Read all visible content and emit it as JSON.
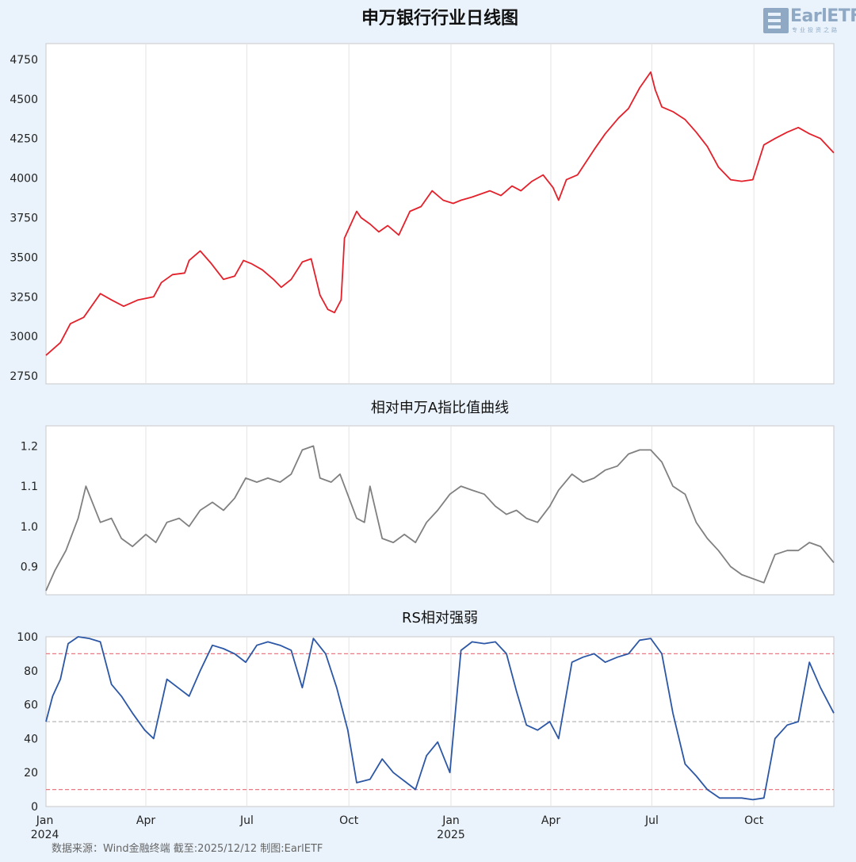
{
  "watermark": {
    "brand": "EarlETF",
    "sub": "专业投资之路"
  },
  "footer": {
    "source": "数据来源：Wind金融终端 截至:2025/12/12 制图:EarlETF"
  },
  "colors": {
    "background": "#eaf3fb",
    "plot_bg": "#ffffff",
    "price": "#e4202a",
    "ratio": "#808080",
    "rs": "#2c57a6",
    "upper_line": "#e57b83",
    "mid_line": "#b9b9b9",
    "lower_line": "#e57b83"
  },
  "x_axis": {
    "start": "2024-01-02",
    "end": "2025-12-12",
    "ticks": [
      {
        "label": "Jan",
        "sublabel": "2024",
        "date": "2024-01-01"
      },
      {
        "label": "Apr",
        "sublabel": "",
        "date": "2024-04-01"
      },
      {
        "label": "Jul",
        "sublabel": "",
        "date": "2024-07-01"
      },
      {
        "label": "Oct",
        "sublabel": "",
        "date": "2024-10-01"
      },
      {
        "label": "Jan",
        "sublabel": "2025",
        "date": "2025-01-01"
      },
      {
        "label": "Apr",
        "sublabel": "",
        "date": "2025-04-01"
      },
      {
        "label": "Jul",
        "sublabel": "",
        "date": "2025-07-01"
      },
      {
        "label": "Oct",
        "sublabel": "",
        "date": "2025-10-01"
      }
    ]
  },
  "chart_data": [
    {
      "type": "line",
      "title": "申万银行行业日线图",
      "ylim": [
        2700,
        4850
      ],
      "yticks": [
        2750,
        3000,
        3250,
        3500,
        3750,
        4000,
        4250,
        4500,
        4750
      ],
      "series": [
        {
          "x": [
            "2024-01-02",
            "2024-01-15",
            "2024-01-24",
            "2024-02-05",
            "2024-02-20",
            "2024-03-01",
            "2024-03-12",
            "2024-03-25",
            "2024-04-08",
            "2024-04-15",
            "2024-04-25",
            "2024-05-06",
            "2024-05-10",
            "2024-05-20",
            "2024-05-30",
            "2024-06-10",
            "2024-06-20",
            "2024-06-28",
            "2024-07-05",
            "2024-07-15",
            "2024-07-25",
            "2024-08-01",
            "2024-08-10",
            "2024-08-20",
            "2024-08-28",
            "2024-09-05",
            "2024-09-12",
            "2024-09-18",
            "2024-09-24",
            "2024-09-27",
            "2024-10-08",
            "2024-10-12",
            "2024-10-20",
            "2024-10-28",
            "2024-11-05",
            "2024-11-15",
            "2024-11-25",
            "2024-12-05",
            "2024-12-15",
            "2024-12-25",
            "2025-01-03",
            "2025-01-10",
            "2025-01-20",
            "2025-02-05",
            "2025-02-15",
            "2025-02-25",
            "2025-03-05",
            "2025-03-15",
            "2025-03-25",
            "2025-04-03",
            "2025-04-08",
            "2025-04-15",
            "2025-04-25",
            "2025-05-10",
            "2025-05-20",
            "2025-06-01",
            "2025-06-10",
            "2025-06-20",
            "2025-06-30",
            "2025-07-04",
            "2025-07-10",
            "2025-07-20",
            "2025-07-31",
            "2025-08-10",
            "2025-08-20",
            "2025-08-30",
            "2025-09-10",
            "2025-09-20",
            "2025-09-30",
            "2025-10-10",
            "2025-10-20",
            "2025-10-31",
            "2025-11-10",
            "2025-11-20",
            "2025-11-30",
            "2025-12-12"
          ],
          "values": [
            2880,
            2960,
            3080,
            3120,
            3270,
            3230,
            3190,
            3230,
            3250,
            3340,
            3390,
            3400,
            3480,
            3540,
            3460,
            3360,
            3380,
            3480,
            3460,
            3420,
            3360,
            3310,
            3360,
            3470,
            3490,
            3260,
            3170,
            3150,
            3230,
            3620,
            3790,
            3750,
            3710,
            3660,
            3700,
            3640,
            3790,
            3820,
            3920,
            3860,
            3840,
            3860,
            3880,
            3920,
            3890,
            3950,
            3920,
            3980,
            4020,
            3940,
            3860,
            3990,
            4020,
            4180,
            4280,
            4380,
            4440,
            4570,
            4670,
            4560,
            4450,
            4420,
            4370,
            4290,
            4200,
            4070,
            3990,
            3980,
            3990,
            4210,
            4250,
            4290,
            4320,
            4280,
            4250,
            4160
          ]
        }
      ]
    },
    {
      "type": "line",
      "title": "相对申万A指比值曲线",
      "ylim": [
        0.83,
        1.25
      ],
      "yticks": [
        0.9,
        1.0,
        1.1,
        1.2
      ],
      "series": [
        {
          "x": [
            "2024-01-02",
            "2024-01-10",
            "2024-01-20",
            "2024-01-31",
            "2024-02-07",
            "2024-02-20",
            "2024-03-01",
            "2024-03-10",
            "2024-03-20",
            "2024-04-01",
            "2024-04-10",
            "2024-04-20",
            "2024-05-01",
            "2024-05-10",
            "2024-05-20",
            "2024-05-31",
            "2024-06-10",
            "2024-06-20",
            "2024-06-30",
            "2024-07-10",
            "2024-07-20",
            "2024-07-31",
            "2024-08-10",
            "2024-08-20",
            "2024-08-30",
            "2024-09-05",
            "2024-09-15",
            "2024-09-23",
            "2024-10-08",
            "2024-10-15",
            "2024-10-20",
            "2024-10-31",
            "2024-11-10",
            "2024-11-20",
            "2024-11-30",
            "2024-12-10",
            "2024-12-20",
            "2024-12-31",
            "2025-01-10",
            "2025-01-20",
            "2025-01-31",
            "2025-02-10",
            "2025-02-20",
            "2025-03-01",
            "2025-03-10",
            "2025-03-20",
            "2025-03-31",
            "2025-04-08",
            "2025-04-20",
            "2025-04-30",
            "2025-05-10",
            "2025-05-20",
            "2025-05-31",
            "2025-06-10",
            "2025-06-20",
            "2025-06-30",
            "2025-07-10",
            "2025-07-20",
            "2025-07-31",
            "2025-08-10",
            "2025-08-20",
            "2025-08-30",
            "2025-09-10",
            "2025-09-20",
            "2025-09-30",
            "2025-10-10",
            "2025-10-20",
            "2025-10-31",
            "2025-11-10",
            "2025-11-20",
            "2025-11-30",
            "2025-12-12"
          ],
          "values": [
            0.84,
            0.89,
            0.94,
            1.02,
            1.1,
            1.01,
            1.02,
            0.97,
            0.95,
            0.98,
            0.96,
            1.01,
            1.02,
            1.0,
            1.04,
            1.06,
            1.04,
            1.07,
            1.12,
            1.11,
            1.12,
            1.11,
            1.13,
            1.19,
            1.2,
            1.12,
            1.11,
            1.13,
            1.02,
            1.01,
            1.1,
            0.97,
            0.96,
            0.98,
            0.96,
            1.01,
            1.04,
            1.08,
            1.1,
            1.09,
            1.08,
            1.05,
            1.03,
            1.04,
            1.02,
            1.01,
            1.05,
            1.09,
            1.13,
            1.11,
            1.12,
            1.14,
            1.15,
            1.18,
            1.19,
            1.19,
            1.16,
            1.1,
            1.08,
            1.01,
            0.97,
            0.94,
            0.9,
            0.88,
            0.87,
            0.86,
            0.93,
            0.94,
            0.94,
            0.96,
            0.95,
            0.91
          ]
        }
      ]
    },
    {
      "type": "line",
      "title": "RS相对强弱",
      "ylim": [
        0,
        100
      ],
      "yticks": [
        0,
        20,
        40,
        60,
        80,
        100
      ],
      "reference_lines": [
        90,
        50,
        10
      ],
      "series": [
        {
          "x": [
            "2024-01-02",
            "2024-01-08",
            "2024-01-15",
            "2024-01-22",
            "2024-01-31",
            "2024-02-10",
            "2024-02-20",
            "2024-03-01",
            "2024-03-10",
            "2024-03-20",
            "2024-03-31",
            "2024-04-08",
            "2024-04-20",
            "2024-04-30",
            "2024-05-10",
            "2024-05-20",
            "2024-05-31",
            "2024-06-10",
            "2024-06-20",
            "2024-06-30",
            "2024-07-10",
            "2024-07-20",
            "2024-07-31",
            "2024-08-10",
            "2024-08-20",
            "2024-08-30",
            "2024-09-10",
            "2024-09-20",
            "2024-09-30",
            "2024-10-08",
            "2024-10-20",
            "2024-10-31",
            "2024-11-10",
            "2024-11-20",
            "2024-11-30",
            "2024-12-10",
            "2024-12-20",
            "2024-12-31",
            "2025-01-10",
            "2025-01-20",
            "2025-01-31",
            "2025-02-10",
            "2025-02-20",
            "2025-03-01",
            "2025-03-10",
            "2025-03-20",
            "2025-03-31",
            "2025-04-08",
            "2025-04-20",
            "2025-04-30",
            "2025-05-10",
            "2025-05-20",
            "2025-05-31",
            "2025-06-10",
            "2025-06-20",
            "2025-06-30",
            "2025-07-10",
            "2025-07-20",
            "2025-07-31",
            "2025-08-10",
            "2025-08-20",
            "2025-08-31",
            "2025-09-10",
            "2025-09-20",
            "2025-09-30",
            "2025-10-10",
            "2025-10-20",
            "2025-10-31",
            "2025-11-10",
            "2025-11-20",
            "2025-11-30",
            "2025-12-12"
          ],
          "values": [
            50,
            65,
            75,
            96,
            100,
            99,
            97,
            72,
            65,
            55,
            45,
            40,
            75,
            70,
            65,
            80,
            95,
            93,
            90,
            85,
            95,
            97,
            95,
            92,
            70,
            99,
            90,
            70,
            45,
            14,
            16,
            28,
            20,
            15,
            10,
            30,
            38,
            20,
            92,
            97,
            96,
            97,
            90,
            68,
            48,
            45,
            50,
            40,
            85,
            88,
            90,
            85,
            88,
            90,
            98,
            99,
            90,
            55,
            25,
            18,
            10,
            5,
            5,
            5,
            4,
            5,
            40,
            48,
            50,
            85,
            70,
            55
          ]
        }
      ]
    }
  ]
}
